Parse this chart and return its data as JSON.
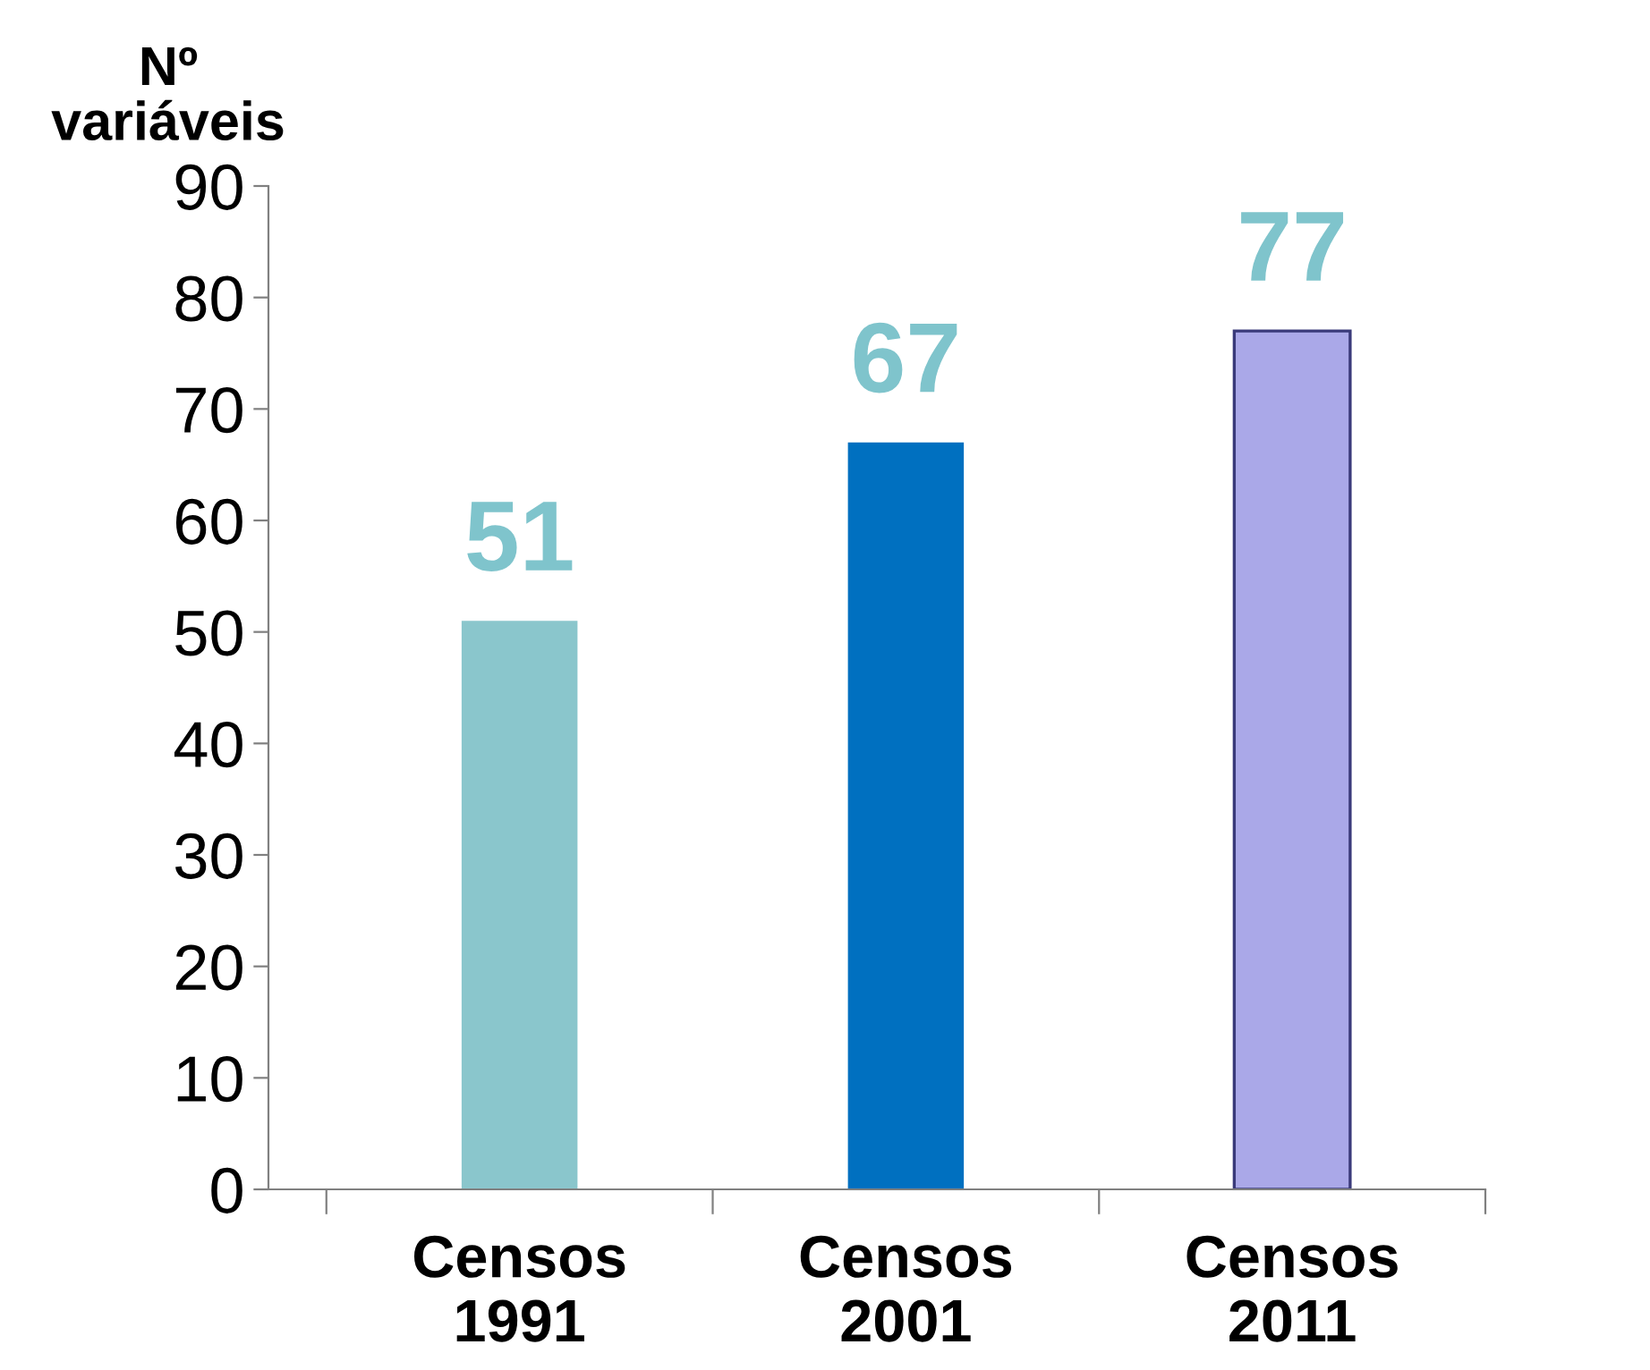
{
  "chart_data": {
    "type": "bar",
    "ylabel": "Nº\nvariáveis",
    "categories": [
      "Censos\n1991",
      "Censos\n2001",
      "Censos\n2011"
    ],
    "values": [
      51,
      67,
      77
    ],
    "colors": [
      "#8ac6cc",
      "#0070c0",
      "#aaa8e8"
    ],
    "ylim": [
      0,
      90
    ],
    "yticks": [
      0,
      10,
      20,
      30,
      40,
      50,
      60,
      70,
      80,
      90
    ],
    "data_labels": true,
    "grid": false,
    "legend": false
  }
}
